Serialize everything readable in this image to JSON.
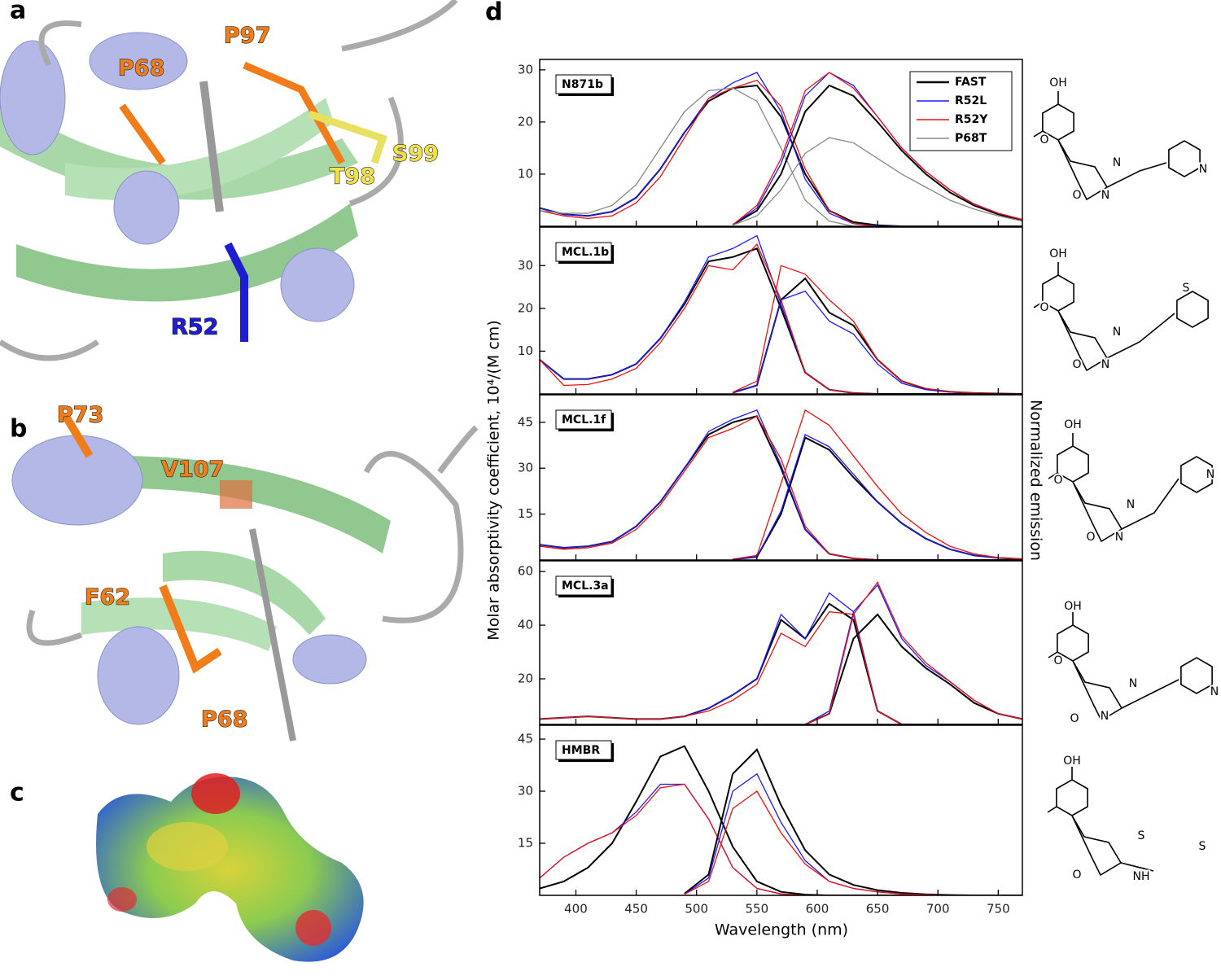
{
  "panels": {
    "a": {
      "label": "a",
      "residues": [
        "P68",
        "P97",
        "T98",
        "S99",
        "R52"
      ]
    },
    "b": {
      "label": "b",
      "residues": [
        "P73",
        "V107",
        "F62",
        "P68"
      ]
    },
    "c": {
      "label": "c"
    },
    "d": {
      "label": "d"
    }
  },
  "figure": {
    "x_label": "Wavelength (nm)",
    "y_label": "Molar absorptivity coefficient, 10⁴/(M cm)",
    "y2_label": "Normalized emission"
  },
  "chart_data": [
    {
      "type": "line",
      "title": "N871b",
      "legend": "upper right",
      "x": [
        370,
        390,
        410,
        430,
        450,
        470,
        490,
        510,
        530,
        550,
        570,
        590,
        610,
        630,
        650,
        670,
        690,
        710,
        730,
        750,
        770
      ],
      "xlim": [
        370,
        770
      ],
      "ylim": [
        0,
        32
      ],
      "yticks": [
        10,
        20,
        30
      ],
      "y2lim": [
        0,
        32
      ],
      "series": [
        {
          "name": "FAST",
          "color": "#000000",
          "values": [
            3.5,
            2.3,
            2,
            2.8,
            5.5,
            11,
            18,
            24,
            26.5,
            27,
            21,
            10,
            3,
            0.8,
            0.2,
            0,
            0,
            0,
            0,
            0,
            0
          ]
        },
        {
          "name": "R52L",
          "color": "#1a1aff",
          "values": [
            3.5,
            2.3,
            2,
            2.8,
            5.5,
            11,
            18,
            24.5,
            27.5,
            29.5,
            22,
            9,
            2.5,
            0.5,
            0.1,
            0,
            0,
            0,
            0,
            0,
            0
          ]
        },
        {
          "name": "R52Y",
          "color": "#ee1111",
          "values": [
            3,
            2,
            1.5,
            2,
            4.5,
            9.5,
            17,
            24.5,
            26.5,
            28,
            23,
            11,
            3,
            0.5,
            0,
            0,
            0,
            0,
            0,
            0,
            0
          ]
        },
        {
          "name": "P68T",
          "color": "#888888",
          "values": [
            3,
            2.5,
            2.5,
            4,
            8,
            15,
            22,
            26,
            26.5,
            24,
            15,
            5,
            1,
            0,
            0,
            0,
            0,
            0,
            0,
            0,
            0
          ]
        },
        {
          "name": "FAST",
          "color": "#000000",
          "axis": "y2",
          "values": [
            null,
            null,
            null,
            null,
            null,
            null,
            null,
            null,
            0.3,
            3,
            10,
            22,
            27,
            25,
            20,
            14.5,
            10,
            6.5,
            4,
            2.3,
            1.2
          ]
        },
        {
          "name": "R52L",
          "color": "#1a1aff",
          "axis": "y2",
          "values": [
            null,
            null,
            null,
            null,
            null,
            null,
            null,
            null,
            0.3,
            3.5,
            12,
            25,
            29.5,
            27,
            21,
            15,
            10.5,
            7,
            4.3,
            2.5,
            1.3
          ]
        },
        {
          "name": "R52Y",
          "color": "#ee1111",
          "axis": "y2",
          "values": [
            null,
            null,
            null,
            null,
            null,
            null,
            null,
            null,
            0.3,
            4,
            13,
            26,
            29.5,
            26.5,
            21,
            15,
            10.5,
            7,
            4.2,
            2.5,
            1.3
          ]
        },
        {
          "name": "P68T",
          "color": "#888888",
          "axis": "y2",
          "values": [
            null,
            null,
            null,
            null,
            null,
            null,
            null,
            null,
            0.2,
            2,
            7,
            14,
            17,
            16,
            13,
            10,
            7.5,
            5,
            3.3,
            2,
            1
          ]
        }
      ]
    },
    {
      "type": "line",
      "title": "MCL.1b",
      "x": [
        370,
        390,
        410,
        430,
        450,
        470,
        490,
        510,
        530,
        550,
        570,
        590,
        610,
        630,
        650,
        670,
        690,
        710,
        730,
        750,
        770
      ],
      "xlim": [
        370,
        770
      ],
      "ylim": [
        0,
        39
      ],
      "yticks": [
        10,
        20,
        30
      ],
      "y2lim": [
        0,
        39
      ],
      "series": [
        {
          "name": "FAST",
          "color": "#000000",
          "values": [
            8,
            3.5,
            3.5,
            4.5,
            7,
            13,
            21,
            31,
            32,
            34,
            20,
            5,
            1,
            0.2,
            0,
            0,
            0,
            0,
            0,
            0,
            0
          ]
        },
        {
          "name": "R52L",
          "color": "#1a1aff",
          "values": [
            8,
            3.5,
            3.5,
            4.5,
            7,
            13,
            21.5,
            32,
            34,
            37,
            21,
            5,
            1,
            0.2,
            0,
            0,
            0,
            0,
            0,
            0,
            0
          ]
        },
        {
          "name": "R52Y",
          "color": "#ee1111",
          "values": [
            8,
            2,
            2.2,
            3.5,
            6,
            12,
            20,
            30,
            29,
            35,
            22,
            5,
            1,
            0.2,
            0,
            0,
            0,
            0,
            0,
            0,
            0
          ]
        },
        {
          "name": "FAST",
          "color": "#000000",
          "axis": "y2",
          "values": [
            null,
            null,
            null,
            null,
            null,
            null,
            null,
            null,
            0.3,
            2,
            22,
            27,
            19,
            16,
            8,
            3,
            1.2,
            0.5,
            0.2,
            0.1,
            0
          ]
        },
        {
          "name": "R52L",
          "color": "#1a1aff",
          "axis": "y2",
          "values": [
            null,
            null,
            null,
            null,
            null,
            null,
            null,
            null,
            0.3,
            2,
            22,
            24,
            17,
            14,
            7,
            2.5,
            1,
            0.4,
            0.2,
            0.1,
            0
          ]
        },
        {
          "name": "R52Y",
          "color": "#ee1111",
          "axis": "y2",
          "values": [
            null,
            null,
            null,
            null,
            null,
            null,
            null,
            null,
            0.4,
            3,
            30,
            28,
            22,
            17,
            8,
            3,
            1.3,
            0.5,
            0.2,
            0.1,
            0
          ]
        }
      ]
    },
    {
      "type": "line",
      "title": "MCL.1f",
      "x": [
        370,
        390,
        410,
        430,
        450,
        470,
        490,
        510,
        530,
        550,
        570,
        590,
        610,
        630,
        650,
        670,
        690,
        710,
        730,
        750,
        770
      ],
      "xlim": [
        370,
        770
      ],
      "ylim": [
        0,
        54
      ],
      "yticks": [
        15,
        30,
        45
      ],
      "y2lim": [
        0,
        54
      ],
      "series": [
        {
          "name": "FAST",
          "color": "#000000",
          "values": [
            5,
            4,
            4.5,
            6,
            11,
            19,
            30,
            41,
            45,
            47,
            30,
            10,
            2,
            0.5,
            0,
            0,
            0,
            0,
            0,
            0,
            0
          ]
        },
        {
          "name": "R52L",
          "color": "#1a1aff",
          "values": [
            5,
            4,
            4.5,
            6,
            11,
            19,
            30,
            42,
            46,
            49,
            31,
            10,
            2,
            0.5,
            0,
            0,
            0,
            0,
            0,
            0,
            0
          ]
        },
        {
          "name": "R52Y",
          "color": "#ee1111",
          "values": [
            4.5,
            3.5,
            4,
            5.5,
            10,
            18,
            29,
            40,
            43,
            47,
            33,
            11,
            2,
            0.5,
            0,
            0,
            0,
            0,
            0,
            0,
            0
          ]
        },
        {
          "name": "FAST",
          "color": "#000000",
          "axis": "y2",
          "values": [
            null,
            null,
            null,
            null,
            null,
            null,
            null,
            null,
            0.2,
            1,
            15,
            40,
            36,
            27,
            19,
            12,
            7,
            3.5,
            1.5,
            0.7,
            0.3
          ]
        },
        {
          "name": "R52L",
          "color": "#1a1aff",
          "axis": "y2",
          "values": [
            null,
            null,
            null,
            null,
            null,
            null,
            null,
            null,
            0.2,
            1,
            16,
            41,
            37,
            28,
            19,
            12,
            7,
            3.5,
            1.5,
            0.7,
            0.3
          ]
        },
        {
          "name": "R52Y",
          "color": "#ee1111",
          "axis": "y2",
          "values": [
            null,
            null,
            null,
            null,
            null,
            null,
            null,
            null,
            0.3,
            1.5,
            25,
            49,
            44,
            34,
            24,
            15,
            9,
            4.5,
            2,
            0.8,
            0.3
          ]
        }
      ]
    },
    {
      "type": "line",
      "title": "MCL.3a",
      "x": [
        370,
        390,
        410,
        430,
        450,
        470,
        490,
        510,
        530,
        550,
        570,
        590,
        610,
        630,
        650,
        670,
        690,
        710,
        730,
        750,
        770
      ],
      "xlim": [
        370,
        770
      ],
      "ylim": [
        3,
        64
      ],
      "yticks": [
        20,
        40,
        60
      ],
      "y2lim": [
        3,
        64
      ],
      "series": [
        {
          "name": "FAST",
          "color": "#000000",
          "values": [
            5,
            5.5,
            6,
            5.5,
            5,
            5,
            6,
            9,
            14,
            20,
            42,
            35,
            48,
            42,
            8,
            3,
            3,
            3,
            3,
            3,
            3
          ]
        },
        {
          "name": "R52L",
          "color": "#1a1aff",
          "values": [
            5,
            5.5,
            6,
            5.5,
            5,
            5,
            6,
            9,
            14,
            20,
            44,
            35,
            52,
            45,
            8,
            3,
            3,
            3,
            3,
            3,
            3
          ]
        },
        {
          "name": "R52Y",
          "color": "#ee1111",
          "values": [
            5,
            5.5,
            6,
            5.5,
            5,
            5,
            6,
            8,
            12,
            18,
            37,
            32,
            45,
            44,
            8,
            3,
            3,
            3,
            3,
            3,
            3
          ]
        },
        {
          "name": "FAST",
          "color": "#000000",
          "axis": "y2",
          "values": [
            null,
            null,
            null,
            null,
            null,
            null,
            null,
            null,
            null,
            null,
            null,
            3,
            7,
            35,
            44,
            32,
            24,
            18,
            11,
            7,
            5
          ]
        },
        {
          "name": "R52L",
          "color": "#1a1aff",
          "axis": "y2",
          "values": [
            null,
            null,
            null,
            null,
            null,
            null,
            null,
            null,
            null,
            null,
            null,
            3,
            8,
            45,
            55,
            35,
            25,
            19,
            12,
            7,
            5
          ]
        },
        {
          "name": "R52Y",
          "color": "#ee1111",
          "axis": "y2",
          "values": [
            null,
            null,
            null,
            null,
            null,
            null,
            null,
            null,
            null,
            null,
            null,
            3,
            7,
            44,
            56,
            36,
            26,
            19,
            12,
            7,
            5
          ]
        }
      ]
    },
    {
      "type": "line",
      "title": "HMBR",
      "x": [
        370,
        390,
        410,
        430,
        450,
        470,
        490,
        510,
        530,
        550,
        570,
        590,
        610,
        630,
        650,
        670,
        690,
        710,
        730,
        750,
        770
      ],
      "xlim": [
        370,
        770
      ],
      "ylim": [
        0,
        49
      ],
      "yticks": [
        15,
        30,
        45
      ],
      "y2lim": [
        0,
        49
      ],
      "xticks": [
        400,
        450,
        500,
        550,
        600,
        650,
        700,
        750
      ],
      "series": [
        {
          "name": "FAST",
          "color": "#000000",
          "values": [
            2,
            4,
            8,
            15,
            27,
            40,
            43,
            30,
            14,
            4,
            1,
            0.2,
            0,
            0,
            0,
            0,
            0,
            0,
            0,
            0,
            0
          ]
        },
        {
          "name": "R52L",
          "color": "#1a1aff",
          "values": [
            5,
            11,
            15,
            18,
            24,
            32,
            32,
            22,
            8,
            2,
            0.4,
            0,
            0,
            0,
            0,
            0,
            0,
            0,
            0,
            0,
            0
          ]
        },
        {
          "name": "R52Y",
          "color": "#ee1111",
          "values": [
            5,
            11,
            15,
            18,
            23,
            31,
            32,
            22,
            8,
            2,
            0.4,
            0,
            0,
            0,
            0,
            0,
            0,
            0,
            0,
            0,
            0
          ]
        },
        {
          "name": "FAST",
          "color": "#000000",
          "axis": "y2",
          "values": [
            null,
            null,
            null,
            null,
            null,
            null,
            0.5,
            6,
            35,
            42,
            26,
            13,
            6,
            3,
            1.5,
            0.7,
            0.3,
            0.1,
            0,
            0,
            0
          ]
        },
        {
          "name": "R52L",
          "color": "#1a1aff",
          "axis": "y2",
          "values": [
            null,
            null,
            null,
            null,
            null,
            null,
            0.3,
            5,
            30,
            35,
            21,
            10,
            4,
            2,
            1,
            0.4,
            0.2,
            0,
            0,
            0,
            0
          ]
        },
        {
          "name": "R52Y",
          "color": "#ee1111",
          "axis": "y2",
          "values": [
            null,
            null,
            null,
            null,
            null,
            null,
            0.3,
            4,
            25,
            30,
            18,
            9,
            4,
            2,
            1,
            0.4,
            0.2,
            0,
            0,
            0,
            0
          ]
        }
      ]
    }
  ],
  "structures": [
    {
      "atoms": [
        "OH",
        "O",
        "N",
        "O",
        "N",
        "N"
      ]
    },
    {
      "atoms": [
        "OH",
        "O",
        "N",
        "O",
        "N",
        "S"
      ]
    },
    {
      "atoms": [
        "OH",
        "O",
        "N",
        "O",
        "N",
        "N"
      ]
    },
    {
      "atoms": [
        "OH",
        "O",
        "N",
        "O",
        "N",
        "N"
      ]
    },
    {
      "atoms": [
        "OH",
        "S",
        "S",
        "O",
        "NH"
      ]
    }
  ]
}
